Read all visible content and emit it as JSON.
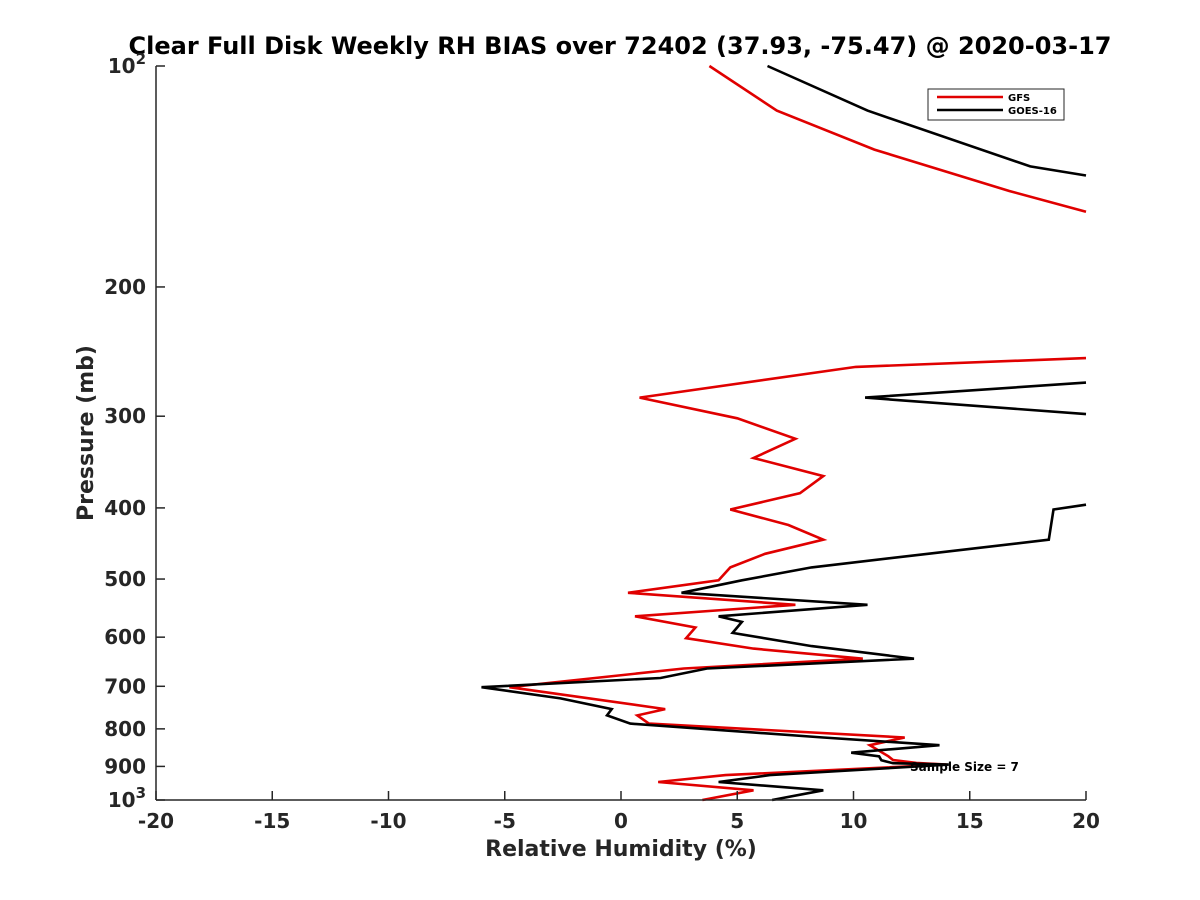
{
  "chart_data": {
    "type": "line",
    "title": "Clear Full Disk Weekly RH BIAS over 72402 (37.93, -75.47) @ 2020-03-17",
    "xlabel": "Relative Humidity (%)",
    "ylabel": "Pressure (mb)",
    "xlim": [
      -20,
      20
    ],
    "ylim": [
      100,
      1000
    ],
    "y_scale": "log",
    "y_reversed": true,
    "x_ticks": [
      -20,
      -15,
      -10,
      -5,
      0,
      5,
      10,
      15,
      20
    ],
    "x_tick_labels": [
      "-20",
      "-15",
      "-10",
      "-5",
      "0",
      "5",
      "10",
      "15",
      "20"
    ],
    "y_ticks": [
      100,
      200,
      300,
      400,
      500,
      600,
      700,
      800,
      900,
      1000
    ],
    "y_tick_labels": [
      {
        "text": "10",
        "sup": "2"
      },
      {
        "text": "200"
      },
      {
        "text": "300"
      },
      {
        "text": "400"
      },
      {
        "text": "500"
      },
      {
        "text": "600"
      },
      {
        "text": "700"
      },
      {
        "text": "800"
      },
      {
        "text": "900"
      },
      {
        "text": "10",
        "sup": "3"
      }
    ],
    "grid": false,
    "legend_position": "top-right",
    "annotation": "Sample Size = 7",
    "series": [
      {
        "name": "GFS",
        "color": "#e00000",
        "segments": [
          [
            [
              3.8,
              100
            ],
            [
              6.7,
              115
            ],
            [
              10.9,
              130
            ],
            [
              16.7,
              148
            ],
            [
              20,
              158
            ]
          ],
          [
            [
              20,
              250
            ],
            [
              10.1,
              257
            ],
            [
              0.8,
              283
            ],
            [
              5,
              302
            ],
            [
              7.5,
              322
            ],
            [
              5.7,
              342
            ],
            [
              8.7,
              362
            ],
            [
              7.7,
              382
            ],
            [
              4.7,
              402
            ],
            [
              7.2,
              422
            ],
            [
              8.7,
              442
            ],
            [
              6.2,
              462
            ],
            [
              4.7,
              482
            ],
            [
              4.2,
              502
            ],
            [
              0.3,
              522
            ],
            [
              7.5,
              542
            ],
            [
              0.6,
              562
            ],
            [
              3.2,
              582
            ],
            [
              2.8,
              602
            ],
            [
              5.7,
              622
            ],
            [
              10.4,
              642
            ],
            [
              2.7,
              662
            ],
            [
              -4.8,
              702
            ],
            [
              1.9,
              752
            ],
            [
              0.7,
              767
            ],
            [
              1.2,
              787
            ],
            [
              12.2,
              822
            ],
            [
              10.7,
              842
            ],
            [
              11.5,
              872
            ],
            [
              11.7,
              882
            ],
            [
              12.7,
              890
            ],
            [
              14,
              895
            ],
            [
              4.5,
              925
            ],
            [
              1.6,
              945
            ],
            [
              5.7,
              970
            ],
            [
              3.5,
              1000
            ]
          ]
        ]
      },
      {
        "name": "GOES-16",
        "color": "#000000",
        "segments": [
          [
            [
              6.3,
              100
            ],
            [
              10.6,
              115
            ],
            [
              17.6,
              137
            ],
            [
              20,
              141
            ]
          ],
          [
            [
              20,
              270
            ],
            [
              10.5,
              283
            ],
            [
              20,
              298
            ]
          ],
          [
            [
              20,
              396
            ],
            [
              18.6,
              402
            ],
            [
              18.4,
              442
            ],
            [
              13.2,
              462
            ],
            [
              8.2,
              482
            ],
            [
              5.2,
              502
            ],
            [
              2.6,
              522
            ],
            [
              10.6,
              542
            ],
            [
              4.2,
              562
            ],
            [
              5.2,
              572
            ],
            [
              4.8,
              592
            ],
            [
              8.2,
              617
            ],
            [
              12.6,
              642
            ],
            [
              3.7,
              662
            ],
            [
              1.7,
              682
            ],
            [
              -6,
              702
            ],
            [
              -2.6,
              727
            ],
            [
              -0.4,
              752
            ],
            [
              -0.6,
              767
            ],
            [
              0.4,
              787
            ],
            [
              8.7,
              822
            ],
            [
              13.7,
              842
            ],
            [
              11.8,
              852
            ],
            [
              9.9,
              862
            ],
            [
              11.1,
              872
            ],
            [
              11.2,
              883
            ],
            [
              11.7,
              891
            ],
            [
              14.1,
              895
            ],
            [
              6.4,
              925
            ],
            [
              4.2,
              945
            ],
            [
              8.7,
              970
            ],
            [
              6.5,
              1000
            ]
          ]
        ]
      }
    ]
  }
}
